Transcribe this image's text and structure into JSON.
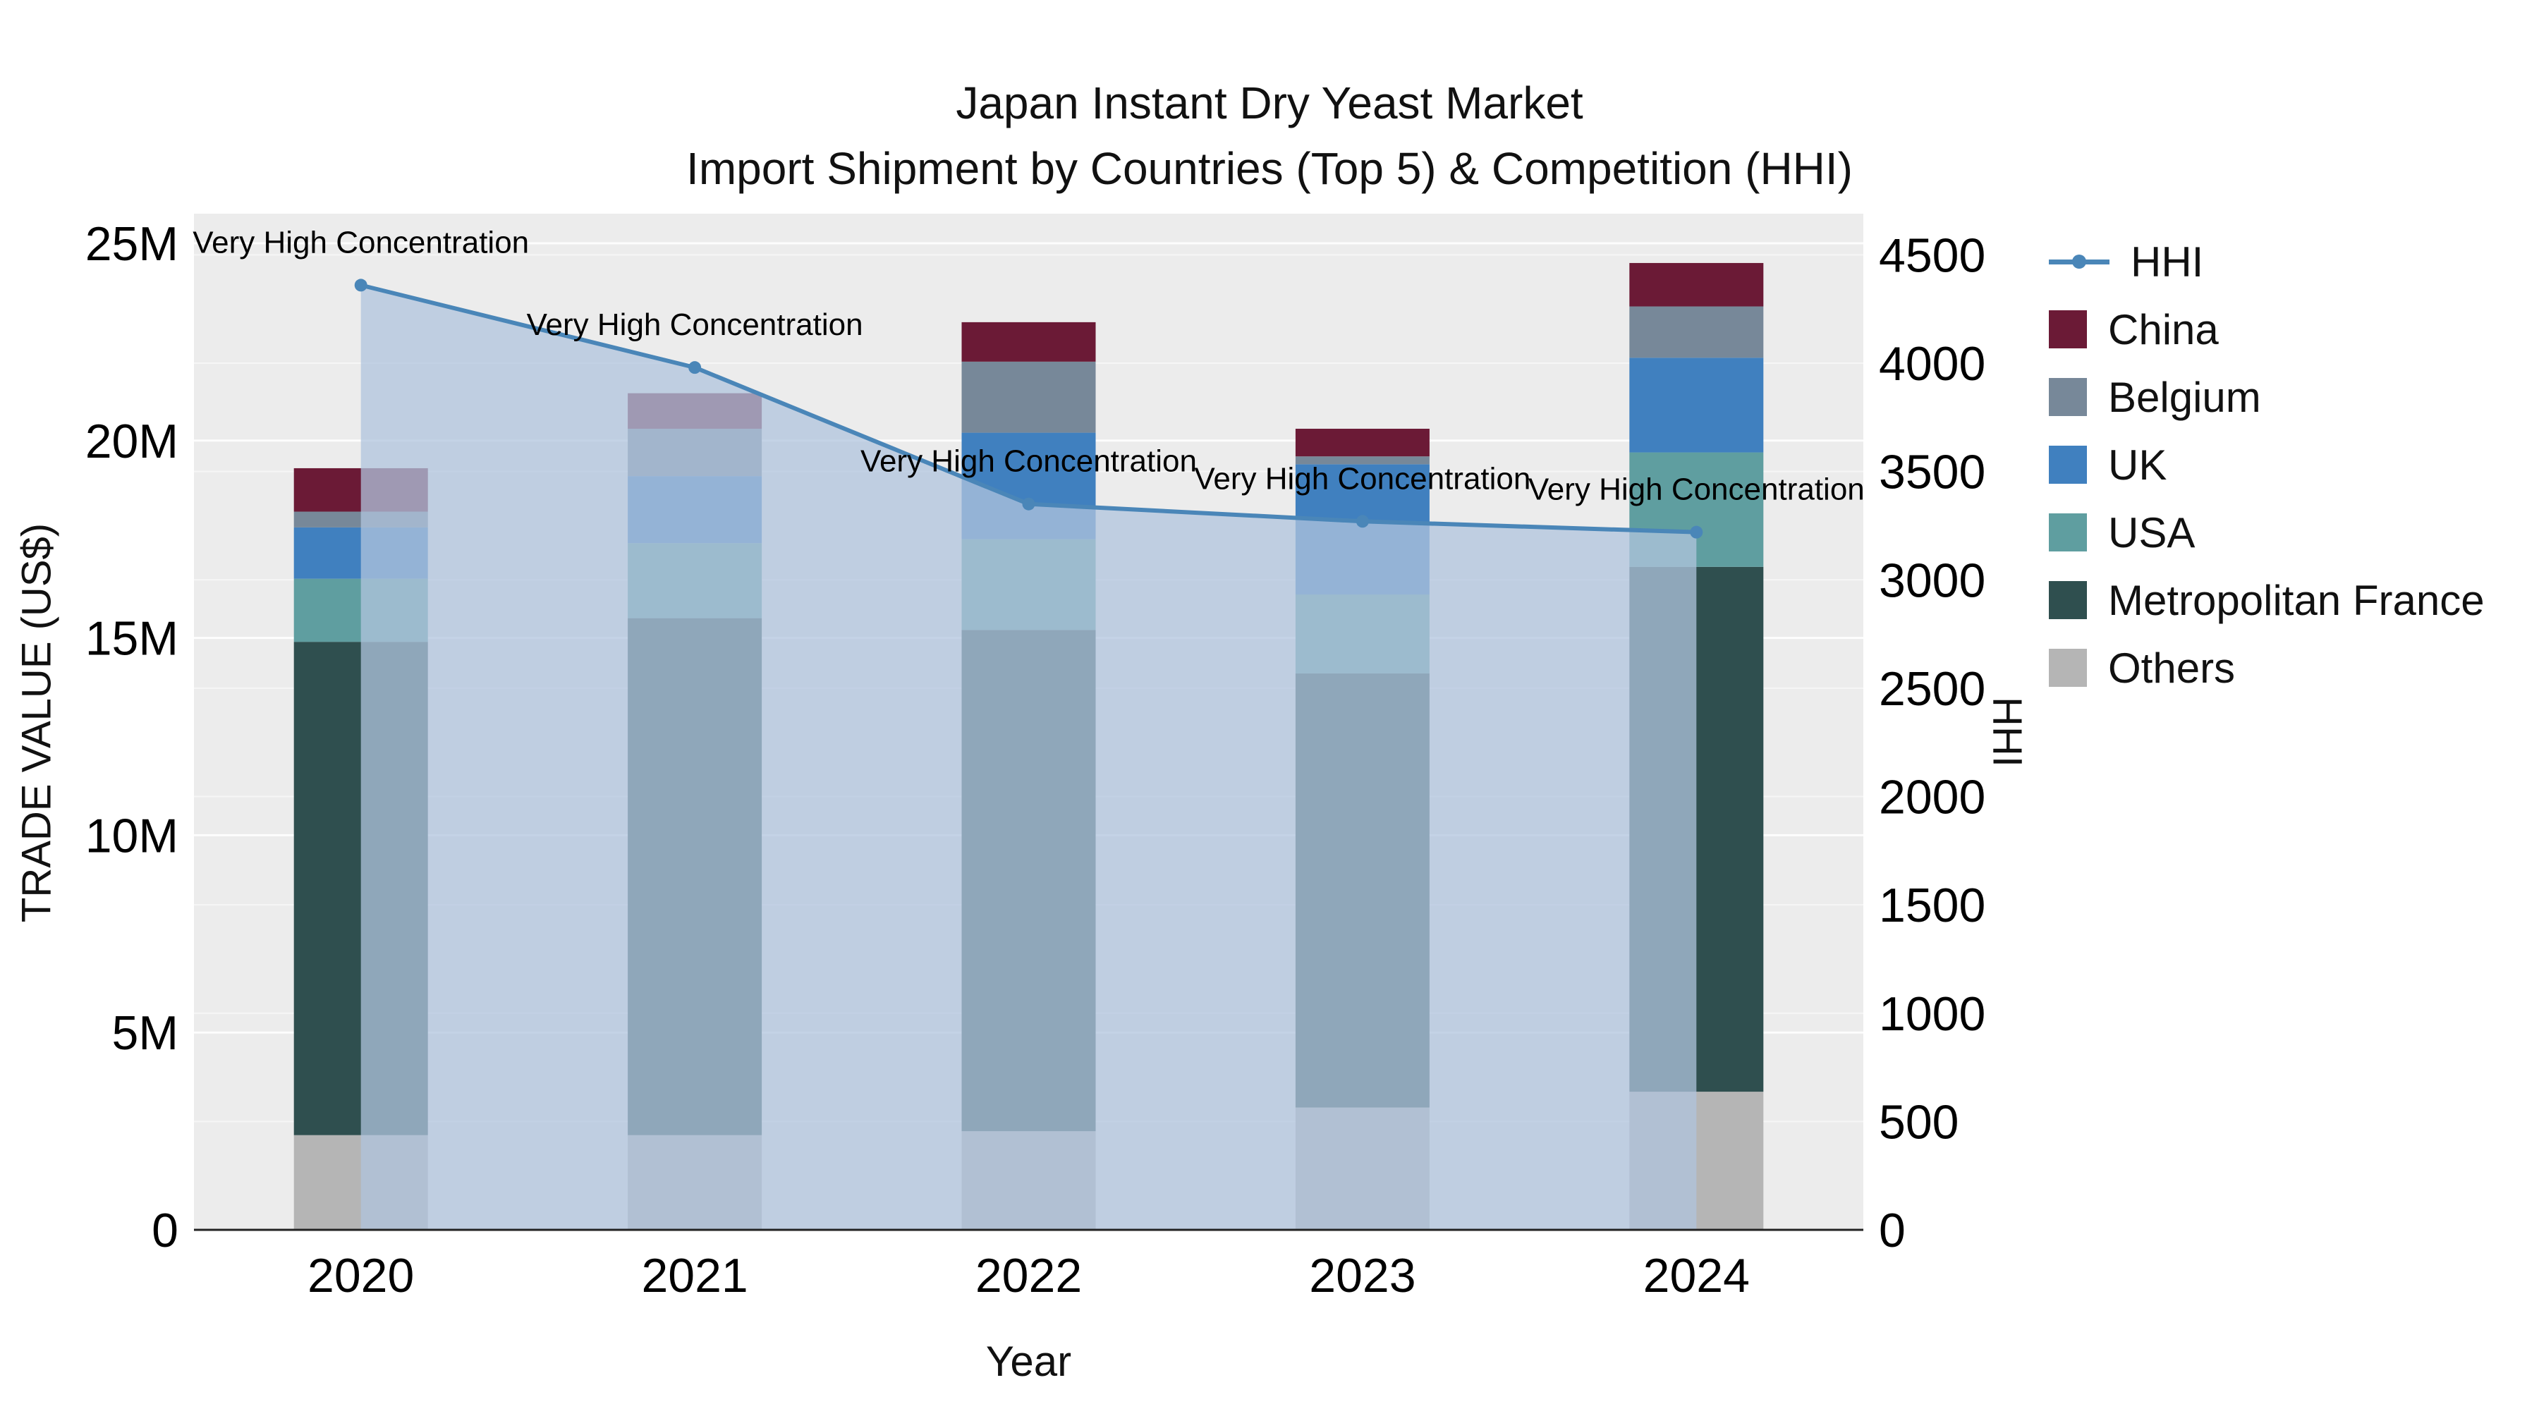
{
  "title": {
    "line1": "Japan Instant Dry Yeast Market",
    "line2": "Import Shipment by Countries (Top 5) & Competition (HHI)"
  },
  "axes": {
    "x_title": "Year",
    "left_title": "TRADE VALUE (US$)",
    "right_title": "HHI",
    "left_ticks": [
      {
        "value": 0,
        "label": "0"
      },
      {
        "value": 5000000,
        "label": "5M"
      },
      {
        "value": 10000000,
        "label": "10M"
      },
      {
        "value": 15000000,
        "label": "15M"
      },
      {
        "value": 20000000,
        "label": "20M"
      },
      {
        "value": 25000000,
        "label": "25M"
      }
    ],
    "right_ticks": [
      {
        "value": 0,
        "label": "0"
      },
      {
        "value": 500,
        "label": "500"
      },
      {
        "value": 1000,
        "label": "1000"
      },
      {
        "value": 1500,
        "label": "1500"
      },
      {
        "value": 2000,
        "label": "2000"
      },
      {
        "value": 2500,
        "label": "2500"
      },
      {
        "value": 3000,
        "label": "3000"
      },
      {
        "value": 3500,
        "label": "3500"
      },
      {
        "value": 4000,
        "label": "4000"
      },
      {
        "value": 4500,
        "label": "4500"
      }
    ]
  },
  "chart_data": {
    "type": "bar",
    "subtype": "stacked-bars-with-line-on-secondary-axis",
    "title": "Japan Instant Dry Yeast Market Import Shipment by Countries (Top 5) & Competition (HHI)",
    "xlabel": "Year",
    "ylabel": "TRADE VALUE (US$)",
    "ylabel_right": "HHI",
    "categories": [
      "2020",
      "2021",
      "2022",
      "2023",
      "2024"
    ],
    "series": [
      {
        "name": "Others",
        "color": "#b5b5b5",
        "values": [
          2400000,
          2400000,
          2500000,
          3100000,
          3500000
        ]
      },
      {
        "name": "Metropolitan France",
        "color": "#2f4f4f",
        "values": [
          12500000,
          13100000,
          12700000,
          11000000,
          13300000
        ]
      },
      {
        "name": "USA",
        "color": "#5f9ea0",
        "values": [
          1600000,
          1900000,
          2300000,
          2000000,
          2900000
        ]
      },
      {
        "name": "UK",
        "color": "#4080bf",
        "values": [
          1300000,
          1700000,
          2700000,
          3300000,
          2400000
        ]
      },
      {
        "name": "Belgium",
        "color": "#778899",
        "values": [
          400000,
          1200000,
          1800000,
          200000,
          1300000
        ]
      },
      {
        "name": "China",
        "color": "#6b1a36",
        "values": [
          1100000,
          900000,
          1000000,
          700000,
          1100000
        ]
      }
    ],
    "bar_totals": [
      19300000,
      21200000,
      23000000,
      20300000,
      24500000
    ],
    "line_series": {
      "name": "HHI",
      "axis": "right",
      "color": "#4a86b8",
      "fill": "rgba(176,196,222,0.75)",
      "values": [
        4360,
        3980,
        3350,
        3270,
        3220
      ]
    },
    "annotations": [
      {
        "text": "Very High Concentration",
        "category": "2020"
      },
      {
        "text": "Very High Concentration",
        "category": "2021"
      },
      {
        "text": "Very High Concentration",
        "category": "2022"
      },
      {
        "text": "Very High Concentration",
        "category": "2023"
      },
      {
        "text": "Very High Concentration",
        "category": "2024"
      }
    ],
    "ylim_left": [
      0,
      25750000
    ],
    "ylim_right": [
      0,
      4690
    ],
    "grid": true,
    "plot_background": "#ececec",
    "legend_position": "right"
  },
  "legend": {
    "items": [
      {
        "label": "HHI",
        "type": "line",
        "color": "#4a86b8"
      },
      {
        "label": "China",
        "type": "square",
        "color": "#6b1a36"
      },
      {
        "label": "Belgium",
        "type": "square",
        "color": "#778899"
      },
      {
        "label": "UK",
        "type": "square",
        "color": "#4080bf"
      },
      {
        "label": "USA",
        "type": "square",
        "color": "#5f9ea0"
      },
      {
        "label": "Metropolitan France",
        "type": "square",
        "color": "#2f4f4f"
      },
      {
        "label": "Others",
        "type": "square",
        "color": "#b5b5b5"
      }
    ]
  }
}
